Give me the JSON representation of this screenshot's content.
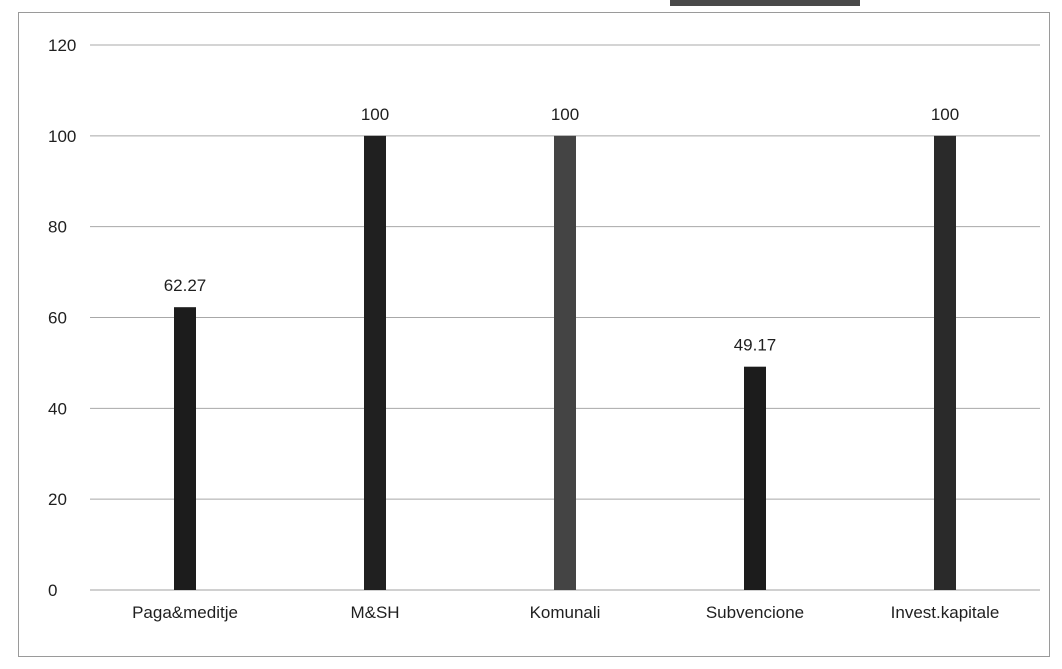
{
  "chart_data": {
    "type": "bar",
    "categories": [
      "Paga&meditje",
      "M&SH",
      "Komunali",
      "Subvencione",
      "Invest.kapitale"
    ],
    "values": [
      62.27,
      100,
      100,
      49.17,
      100
    ],
    "data_labels": [
      "62.27",
      "100",
      "100",
      "49.17",
      "100"
    ],
    "ylim": [
      0,
      120
    ],
    "yticks": [
      0,
      20,
      40,
      60,
      80,
      100,
      120
    ],
    "grid": true,
    "legend": "none",
    "bar_colors": [
      "#1c1c1c",
      "#202020",
      "#444444",
      "#1c1c1c",
      "#2a2a2a"
    ]
  }
}
